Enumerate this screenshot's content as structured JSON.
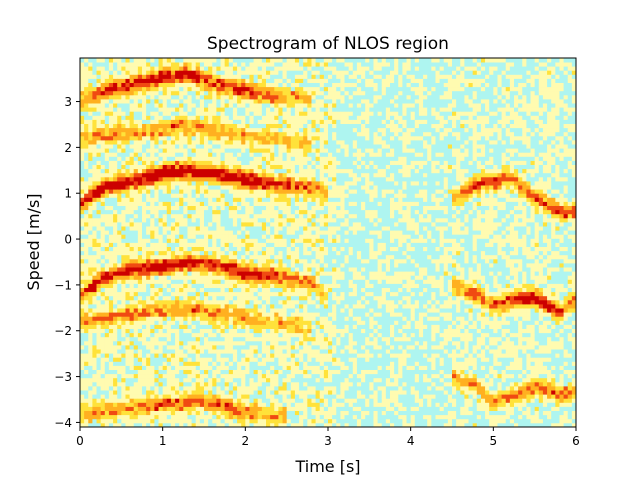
{
  "chart_data": {
    "type": "heatmap",
    "title": "Spectrogram of NLOS region",
    "xlabel": "Time [s]",
    "ylabel": "Speed [m/s]",
    "xlim": [
      0,
      6
    ],
    "ylim": [
      -4.1,
      3.95
    ],
    "x_ticks": [
      0,
      1,
      2,
      3,
      4,
      5,
      6
    ],
    "y_ticks": [
      3,
      2,
      1,
      0,
      -1,
      -2,
      -3,
      -4
    ],
    "x_tick_labels": [
      "0",
      "1",
      "2",
      "3",
      "4",
      "5",
      "6"
    ],
    "y_tick_labels": [
      "3",
      "2",
      "1",
      "0",
      "−1",
      "−2",
      "−3",
      "−4"
    ],
    "grid": false,
    "colormap": [
      "#aef5f0",
      "#fffbb0",
      "#ffe23a",
      "#ffb020",
      "#f04a12",
      "#cc0000"
    ],
    "background_value": 0.12,
    "ridges": [
      {
        "t": [
          0.0,
          0.3,
          0.6,
          1.0,
          1.3,
          1.6,
          2.0,
          2.4,
          2.8,
          3.0
        ],
        "speed": [
          0.75,
          1.15,
          1.25,
          1.45,
          1.5,
          1.45,
          1.3,
          1.2,
          1.15,
          1.0
        ],
        "intensity": [
          0.7,
          0.95,
          0.85,
          1.0,
          0.95,
          0.9,
          0.9,
          0.75,
          0.6,
          0.4
        ]
      },
      {
        "t": [
          0.0,
          0.3,
          0.6,
          1.0,
          1.3,
          1.6,
          2.0,
          2.4,
          2.8
        ],
        "speed": [
          3.0,
          3.25,
          3.35,
          3.55,
          3.6,
          3.4,
          3.25,
          3.1,
          3.05
        ],
        "intensity": [
          0.5,
          0.7,
          0.75,
          0.85,
          0.8,
          0.65,
          0.75,
          0.5,
          0.3
        ]
      },
      {
        "t": [
          0.0,
          0.3,
          0.6,
          1.0,
          1.3,
          1.6,
          2.0,
          2.4,
          2.8,
          3.0
        ],
        "speed": [
          -1.2,
          -0.85,
          -0.65,
          -0.6,
          -0.5,
          -0.55,
          -0.75,
          -0.8,
          -0.95,
          -1.3
        ],
        "intensity": [
          0.6,
          0.75,
          0.7,
          0.8,
          0.85,
          0.7,
          0.85,
          0.65,
          0.5,
          0.35
        ]
      },
      {
        "t": [
          0.0,
          0.4,
          0.8,
          1.2,
          1.6,
          2.0,
          2.4,
          2.8
        ],
        "speed": [
          -1.8,
          -1.7,
          -1.6,
          -1.5,
          -1.6,
          -1.7,
          -1.8,
          -2.0
        ],
        "intensity": [
          0.45,
          0.5,
          0.5,
          0.55,
          0.5,
          0.45,
          0.4,
          0.3
        ]
      },
      {
        "t": [
          0.0,
          0.4,
          0.8,
          1.2,
          1.6,
          2.0,
          2.4,
          2.8
        ],
        "speed": [
          2.2,
          2.3,
          2.35,
          2.5,
          2.4,
          2.25,
          2.2,
          2.1
        ],
        "intensity": [
          0.4,
          0.45,
          0.45,
          0.5,
          0.45,
          0.4,
          0.35,
          0.3
        ]
      },
      {
        "t": [
          0.0,
          0.5,
          1.0,
          1.5,
          2.0,
          2.5
        ],
        "speed": [
          -3.8,
          -3.7,
          -3.6,
          -3.55,
          -3.75,
          -3.9
        ],
        "intensity": [
          0.45,
          0.45,
          0.55,
          0.6,
          0.55,
          0.35
        ]
      },
      {
        "t": [
          4.5,
          4.8,
          5.0,
          5.2,
          5.5,
          5.8,
          6.0
        ],
        "speed": [
          0.9,
          1.2,
          1.25,
          1.35,
          0.9,
          0.6,
          0.6
        ],
        "intensity": [
          0.45,
          0.65,
          0.75,
          0.6,
          0.6,
          0.7,
          0.5
        ]
      },
      {
        "t": [
          4.5,
          4.8,
          5.0,
          5.3,
          5.5,
          5.8,
          6.0
        ],
        "speed": [
          -1.0,
          -1.2,
          -1.45,
          -1.3,
          -1.25,
          -1.6,
          -1.3
        ],
        "intensity": [
          0.5,
          0.65,
          0.6,
          0.75,
          0.9,
          0.7,
          0.5
        ]
      },
      {
        "t": [
          4.5,
          4.8,
          5.0,
          5.3,
          5.5,
          5.8,
          6.0
        ],
        "speed": [
          -3.0,
          -3.2,
          -3.55,
          -3.4,
          -3.2,
          -3.4,
          -3.3
        ],
        "intensity": [
          0.45,
          0.5,
          0.55,
          0.55,
          0.7,
          0.55,
          0.45
        ]
      }
    ]
  }
}
